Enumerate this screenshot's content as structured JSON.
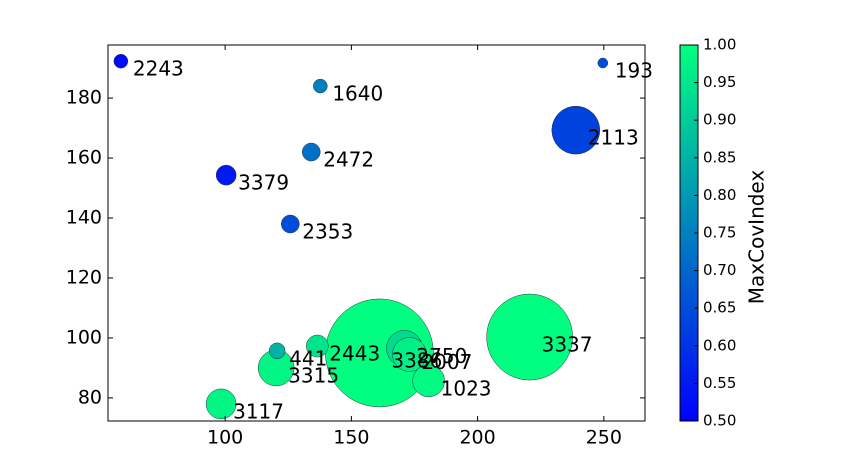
{
  "chart_data": {
    "type": "scatter",
    "labels": [
      "2243",
      "1640",
      "193",
      "2113",
      "2472",
      "3379",
      "2353",
      "3386",
      "3337",
      "3315",
      "441",
      "2443",
      "2750",
      "2007",
      "1023",
      "3117"
    ],
    "x": [
      58.7,
      137.7,
      249.6,
      238.9,
      134.1,
      100.4,
      125.8,
      161.1,
      220.6,
      120.2,
      120.6,
      136.5,
      171,
      173,
      180.6,
      98.4
    ],
    "y": [
      192.3,
      184,
      191.7,
      169.3,
      162,
      154.3,
      138,
      95,
      100.3,
      90,
      95.7,
      97.3,
      96.5,
      94.5,
      85.7,
      78
    ],
    "sizes": [
      49,
      49,
      25,
      576,
      81,
      100,
      81,
      2916,
      1849,
      324,
      64,
      121,
      324,
      289,
      256,
      225
    ],
    "color_values": [
      0.52,
      0.75,
      0.65,
      0.63,
      0.72,
      0.55,
      0.65,
      1.0,
      1.0,
      0.98,
      0.85,
      0.95,
      0.93,
      0.97,
      0.99,
      0.98
    ],
    "colormap": "winter",
    "clim": [
      0.5,
      1.0
    ],
    "colorbar_label": "MaxCovIndex",
    "colorbar_ticks": [
      {
        "value": 0.5,
        "label": "0.50"
      },
      0.55,
      {
        "value": 0.6,
        "label": "0.60"
      },
      0.65,
      {
        "value": 0.7,
        "label": "0.70"
      },
      0.75,
      {
        "value": 0.8,
        "label": "0.80"
      },
      0.85,
      {
        "value": 0.9,
        "label": "0.90"
      },
      0.95,
      {
        "value": 1.0,
        "label": "1.00"
      }
    ],
    "xlim": [
      53.6,
      266.3
    ],
    "ylim": [
      72.3,
      197.7
    ],
    "xticks": [
      100,
      150,
      200,
      250
    ],
    "yticks": [
      80,
      100,
      120,
      140,
      160,
      180
    ]
  }
}
